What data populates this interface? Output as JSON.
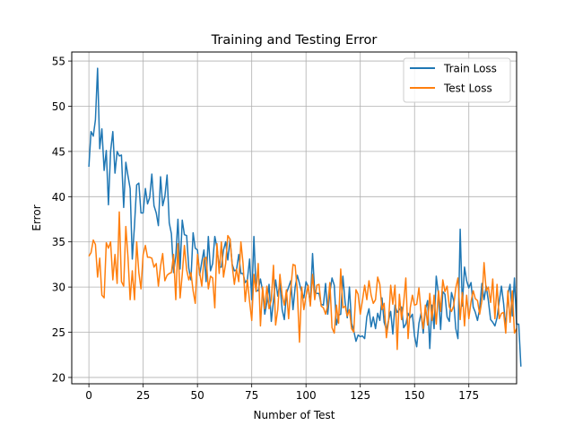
{
  "chart_data": {
    "type": "line",
    "title": "Training and Testing Error",
    "xlabel": "Number of Test",
    "ylabel": "Error",
    "xlim": [
      -7.9,
      197
    ],
    "ylim": [
      19.3,
      56.0
    ],
    "xticks": [
      0,
      25,
      50,
      75,
      100,
      125,
      150,
      175
    ],
    "yticks": [
      20,
      25,
      30,
      35,
      40,
      45,
      50,
      55
    ],
    "grid": true,
    "legend_position": "top-right",
    "series": [
      {
        "name": "Train Loss",
        "color": "#1f77b4",
        "x_start": 0,
        "values": [
          43.3,
          47.2,
          46.7,
          48.5,
          54.2,
          45.3,
          47.5,
          42.9,
          45.1,
          39.1,
          45.0,
          47.2,
          42.6,
          45.0,
          44.5,
          44.6,
          38.8,
          43.8,
          42.3,
          40.9,
          33.1,
          36.9,
          41.3,
          41.5,
          38.2,
          38.2,
          40.9,
          39.2,
          39.9,
          42.5,
          39.0,
          38.2,
          36.8,
          42.2,
          39.0,
          40.0,
          42.4,
          37.1,
          35.9,
          31.6,
          33.4,
          37.5,
          32.0,
          37.4,
          35.8,
          35.7,
          32.1,
          30.8,
          36.0,
          34.3,
          34.1,
          31.3,
          32.8,
          34.1,
          30.6,
          35.6,
          31.8,
          32.6,
          35.6,
          34.4,
          32.2,
          32.2,
          34.1,
          35.0,
          33.0,
          35.3,
          32.5,
          31.8,
          31.9,
          33.6,
          31.5,
          31.5,
          30.5,
          30.8,
          33.1,
          28.6,
          35.6,
          29.6,
          29.6,
          30.9,
          29.6,
          27.0,
          28.3,
          30.3,
          26.2,
          28.5,
          30.8,
          29.0,
          30.4,
          27.5,
          26.4,
          29.3,
          30.0,
          30.7,
          27.5,
          30.0,
          31.3,
          30.4,
          29.4,
          28.8,
          30.6,
          30.0,
          28.1,
          33.7,
          29.4,
          29.3,
          29.3,
          28.1,
          28.0,
          30.4,
          27.0,
          29.4,
          31.0,
          30.2,
          25.8,
          26.9,
          27.0,
          31.2,
          28.3,
          26.6,
          30.0,
          26.0,
          25.2,
          24.0,
          24.7,
          24.5,
          24.6,
          24.3,
          26.7,
          27.6,
          25.6,
          26.7,
          25.4,
          27.1,
          26.3,
          28.8,
          26.1,
          25.3,
          26.3,
          27.3,
          24.8,
          28.0,
          27.2,
          27.5,
          27.8,
          25.5,
          25.9,
          27.1,
          26.6,
          27.0,
          24.6,
          23.4,
          26.0,
          27.1,
          24.9,
          27.5,
          28.5,
          23.2,
          28.0,
          25.4,
          31.2,
          29.2,
          25.3,
          29.5,
          29.2,
          26.7,
          26.2,
          29.4,
          28.5,
          25.4,
          24.3,
          36.4,
          27.9,
          32.2,
          30.7,
          29.9,
          30.5,
          27.8,
          27.2,
          26.3,
          27.6,
          30.4,
          28.6,
          30.1,
          28.5,
          26.4,
          26.1,
          25.7,
          26.6,
          28.4,
          30.1,
          28.2,
          25.5,
          29.2,
          30.3,
          26.8,
          31.0,
          25.9,
          25.9,
          21.2
        ]
      },
      {
        "name": "Test Loss",
        "color": "#ff7f0e",
        "x_start": 0,
        "values": [
          33.4,
          33.8,
          35.2,
          34.7,
          31.1,
          33.2,
          29.1,
          28.8,
          34.9,
          34.3,
          35.0,
          30.8,
          33.6,
          30.4,
          38.3,
          30.6,
          30.1,
          36.7,
          33.3,
          28.6,
          31.8,
          28.6,
          35.0,
          31.6,
          29.8,
          33.6,
          34.6,
          33.3,
          33.3,
          33.2,
          32.2,
          32.6,
          30.1,
          32.3,
          33.7,
          30.7,
          31.3,
          31.5,
          31.6,
          33.6,
          28.6,
          34.8,
          28.8,
          31.4,
          34.6,
          31.9,
          30.8,
          31.6,
          29.6,
          28.2,
          33.6,
          31.6,
          30.1,
          33.1,
          33.3,
          29.8,
          31.2,
          31.0,
          27.7,
          34.8,
          31.5,
          35.0,
          31.1,
          32.6,
          35.7,
          35.3,
          32.4,
          30.3,
          32.0,
          30.6,
          35.0,
          32.6,
          28.4,
          30.8,
          28.4,
          26.3,
          31.4,
          29.5,
          32.6,
          25.7,
          30.0,
          27.6,
          30.1,
          27.6,
          28.6,
          32.4,
          25.8,
          27.5,
          31.4,
          29.1,
          28.0,
          29.7,
          26.5,
          29.8,
          32.5,
          32.4,
          29.5,
          23.9,
          30.0,
          27.5,
          29.0,
          30.2,
          27.9,
          31.4,
          28.6,
          30.2,
          30.3,
          27.9,
          27.7,
          27.0,
          28.0,
          30.5,
          25.5,
          24.9,
          28.0,
          26.0,
          32.0,
          27.7,
          27.9,
          26.8,
          27.5,
          25.4,
          25.0,
          29.7,
          29.2,
          27.0,
          28.5,
          30.2,
          28.6,
          30.7,
          29.1,
          28.2,
          28.6,
          31.1,
          30.3,
          27.5,
          28.2,
          24.4,
          26.2,
          30.2,
          28.1,
          30.2,
          23.1,
          29.2,
          26.4,
          28.3,
          31.0,
          24.3,
          27.7,
          29.1,
          28.0,
          28.1,
          29.9,
          27.2,
          25.4,
          28.0,
          25.8,
          29.3,
          26.3,
          29.1,
          25.9,
          29.6,
          27.3,
          30.8,
          29.5,
          30.1,
          27.8,
          27.3,
          27.9,
          29.9,
          31.0,
          26.4,
          29.4,
          25.7,
          29.1,
          26.5,
          28.4,
          29.6,
          28.7,
          28.5,
          27.0,
          28.5,
          32.7,
          29.6,
          30.0,
          28.3,
          30.9,
          26.5,
          30.3,
          26.5,
          27.1,
          27.2,
          24.9,
          29.6,
          26.1,
          29.6,
          24.9,
          25.4
        ]
      }
    ]
  }
}
